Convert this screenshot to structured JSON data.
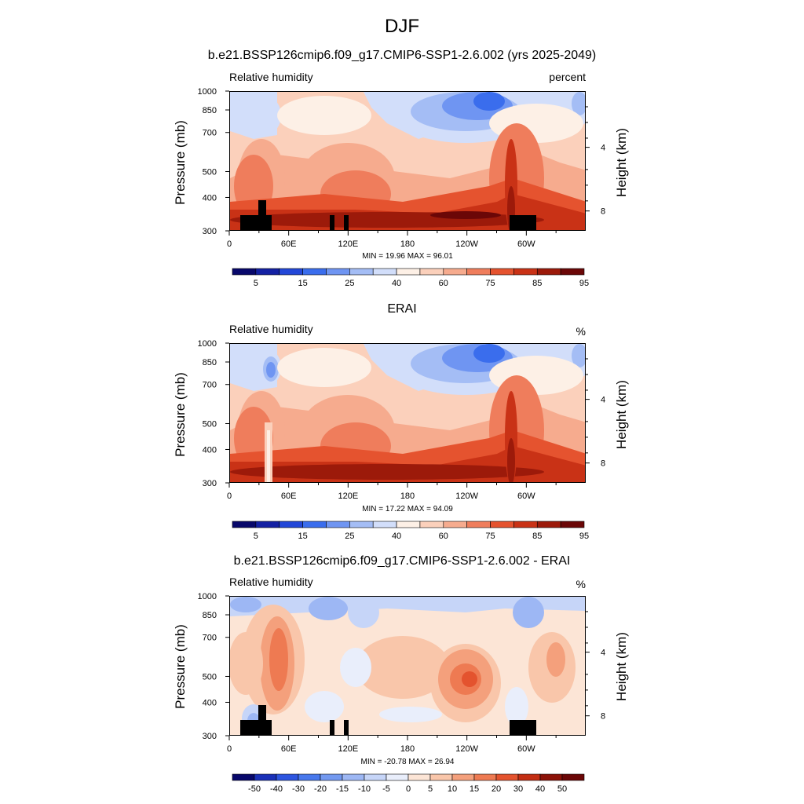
{
  "main_title": "DJF",
  "chart_data": [
    {
      "type": "heatmap",
      "title": "b.e21.BSSP126cmip6.f09_g17.CMIP6-SSP1-2.6.002 (yrs 2025-2049)",
      "variable": "Relative humidity",
      "units": "percent",
      "ylabel": "Pressure (mb)",
      "ylabel_right": "Height (km)",
      "x_ticks": [
        "0",
        "60E",
        "120E",
        "180",
        "120W",
        "60W"
      ],
      "x_range": [
        0,
        360
      ],
      "y_ticks": [
        "300",
        "400",
        "500",
        "700",
        "850",
        "1000"
      ],
      "y_range": [
        1000,
        300
      ],
      "y_log_scale": true,
      "right_ticks": [
        "8",
        "4"
      ],
      "stats_text": "MIN =  19.96  MAX =  96.01",
      "min": 19.96,
      "max": 96.01,
      "colorbar_labels": [
        "5",
        "15",
        "25",
        "40",
        "60",
        "75",
        "85",
        "95"
      ],
      "colors": [
        "#08086b",
        "#1421a3",
        "#2347d8",
        "#3a6ded",
        "#6f95f2",
        "#a4bdf5",
        "#d2defa",
        "#fdf0e6",
        "#fbd0bb",
        "#f6ab8e",
        "#ef7d5c",
        "#e5532f",
        "#c93216",
        "#9c1a0a",
        "#6b0707"
      ],
      "terrain": true
    },
    {
      "type": "heatmap",
      "title": "ERAI",
      "variable": "Relative humidity",
      "units": "%",
      "ylabel": "Pressure (mb)",
      "ylabel_right": "Height (km)",
      "x_ticks": [
        "0",
        "60E",
        "120E",
        "180",
        "120W",
        "60W"
      ],
      "x_range": [
        0,
        360
      ],
      "y_ticks": [
        "300",
        "400",
        "500",
        "700",
        "850",
        "1000"
      ],
      "y_range": [
        1000,
        300
      ],
      "y_log_scale": true,
      "right_ticks": [
        "8",
        "4"
      ],
      "stats_text": "MIN =  17.22  MAX =  94.09",
      "min": 17.22,
      "max": 94.09,
      "colorbar_labels": [
        "5",
        "15",
        "25",
        "40",
        "60",
        "75",
        "85",
        "95"
      ],
      "colors": [
        "#08086b",
        "#1421a3",
        "#2347d8",
        "#3a6ded",
        "#6f95f2",
        "#a4bdf5",
        "#d2defa",
        "#fdf0e6",
        "#fbd0bb",
        "#f6ab8e",
        "#ef7d5c",
        "#e5532f",
        "#c93216",
        "#9c1a0a",
        "#6b0707"
      ],
      "terrain": false
    },
    {
      "type": "heatmap",
      "title": "b.e21.BSSP126cmip6.f09_g17.CMIP6-SSP1-2.6.002 - ERAI",
      "variable": "Relative humidity",
      "units": "%",
      "ylabel": "Pressure (mb)",
      "ylabel_right": "Height (km)",
      "x_ticks": [
        "0",
        "60E",
        "120E",
        "180",
        "120W",
        "60W"
      ],
      "x_range": [
        0,
        360
      ],
      "y_ticks": [
        "300",
        "400",
        "500",
        "700",
        "850",
        "1000"
      ],
      "y_range": [
        1000,
        300
      ],
      "y_log_scale": true,
      "right_ticks": [
        "8",
        "4"
      ],
      "stats_text": "MIN = -20.78  MAX =  26.94",
      "min": -20.78,
      "max": 26.94,
      "colorbar_labels": [
        "-50",
        "-40",
        "-30",
        "-20",
        "-15",
        "-10",
        "-5",
        "0",
        "5",
        "10",
        "15",
        "20",
        "30",
        "40",
        "50"
      ],
      "colors": [
        "#08086b",
        "#1a30b8",
        "#2d55e0",
        "#4878ec",
        "#7399f0",
        "#9db7f4",
        "#c6d5f8",
        "#e9eefb",
        "#fce5d6",
        "#f9c6aa",
        "#f4a07c",
        "#ee7a52",
        "#e4532e",
        "#c32e13",
        "#8c1208",
        "#6b0707"
      ],
      "terrain": true
    }
  ]
}
